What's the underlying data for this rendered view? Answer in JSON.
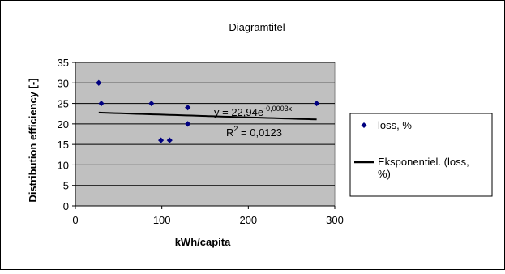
{
  "chart_data": {
    "type": "scatter",
    "title": "Diagramtitel",
    "xlabel": "kWh/capita",
    "ylabel": "Distribution efficiency [-]",
    "xlim": [
      0,
      300
    ],
    "ylim": [
      0,
      35
    ],
    "x_ticks": [
      "0",
      "100",
      "200",
      "300"
    ],
    "y_ticks": [
      "0",
      "5",
      "10",
      "15",
      "20",
      "25",
      "30",
      "35"
    ],
    "grid": true,
    "legend_position": "right",
    "series": [
      {
        "name": "loss, %",
        "marker": "diamond",
        "color": "#000080",
        "points": [
          {
            "x": 27,
            "y": 30
          },
          {
            "x": 30,
            "y": 25
          },
          {
            "x": 88,
            "y": 25
          },
          {
            "x": 99,
            "y": 16
          },
          {
            "x": 109,
            "y": 16
          },
          {
            "x": 130,
            "y": 24
          },
          {
            "x": 130,
            "y": 20
          },
          {
            "x": 279,
            "y": 25
          }
        ]
      }
    ],
    "trendline": {
      "name": "Eksponentiel. (loss, %)",
      "legend_lines": [
        "Eksponentiel. (loss,",
        "%)"
      ],
      "type": "exponential",
      "a": 22.94,
      "b": -0.0003,
      "x_range": [
        27,
        279
      ],
      "color": "#000000",
      "equation": {
        "prefix": "y = 22,94e",
        "exponent": "-0,0003x"
      },
      "r2": {
        "prefix": "R",
        "sup": "2",
        "suffix": " = 0,0123"
      }
    },
    "colors": {
      "plot_background": "#c0c0c0",
      "grid": "#000000"
    }
  }
}
